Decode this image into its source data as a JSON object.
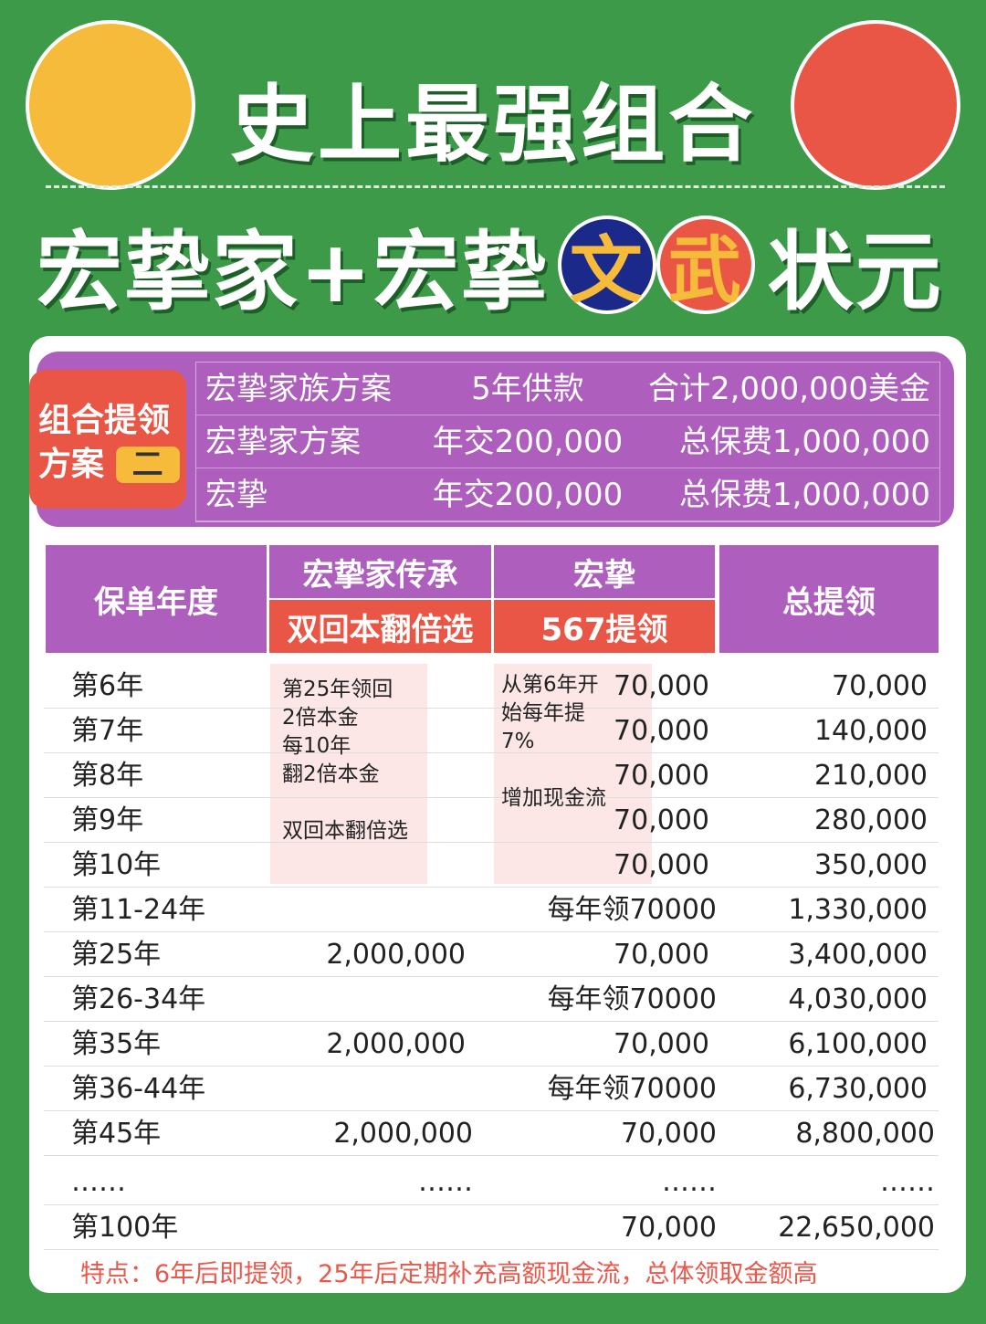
{
  "title": "史上最强组合",
  "subtitle": {
    "left": "宏挚家+宏挚",
    "wen": "文",
    "wu": "武",
    "right": "状元"
  },
  "plan": {
    "badge_line1": "组合提领",
    "badge_line2": "方案",
    "badge_num": "二",
    "rows": [
      {
        "name": "宏挚家族方案",
        "pay": "5年供款",
        "total": "合计2,000,000美金"
      },
      {
        "name": "宏挚家方案",
        "pay": "年交200,000",
        "total": "总保费1,000,000"
      },
      {
        "name": "宏挚",
        "pay": "年交200,000",
        "total": "总保费1,000,000"
      }
    ]
  },
  "table": {
    "headers": {
      "year": "保单年度",
      "col2_top": "宏挚家传承",
      "col2_bottom": "双回本翻倍选",
      "col3_top": "宏挚",
      "col3_bottom": "567提领",
      "total": "总提领"
    },
    "col2_note": [
      "第25年领回",
      "2倍本金",
      "每10年",
      "翻2倍本金",
      "",
      "双回本翻倍选"
    ],
    "col3_note": [
      "从第6年开",
      "始每年提",
      "7%",
      "",
      "增加现金流"
    ],
    "rows": [
      {
        "year": "第6年",
        "c2": "",
        "c3": "70,000",
        "total": "70,000"
      },
      {
        "year": "第7年",
        "c2": "",
        "c3": "70,000",
        "total": "140,000"
      },
      {
        "year": "第8年",
        "c2": "",
        "c3": "70,000",
        "total": "210,000"
      },
      {
        "year": "第9年",
        "c2": "",
        "c3": "70,000",
        "total": "280,000"
      },
      {
        "year": "第10年",
        "c2": "",
        "c3": "70,000",
        "total": "350,000"
      },
      {
        "year": "第11-24年",
        "c2": "",
        "c3": "每年领70000",
        "total": "1,330,000"
      },
      {
        "year": "第25年",
        "c2": "2,000,000",
        "c3": "70,000",
        "total": "3,400,000"
      },
      {
        "year": "第26-34年",
        "c2": "",
        "c3": "每年领70000",
        "total": "4,030,000"
      },
      {
        "year": "第35年",
        "c2": "2,000,000",
        "c3": "70,000",
        "total": "6,100,000"
      },
      {
        "year": "第36-44年",
        "c2": "",
        "c3": "每年领70000",
        "total": "6,730,000"
      },
      {
        "year": "第45年",
        "c2": "2,000,000",
        "c3": "70,000",
        "total": "8,800,000"
      },
      {
        "year": "……",
        "c2": "……",
        "c3": "……",
        "total": "……"
      },
      {
        "year": "第100年",
        "c2": "",
        "c3": "70,000",
        "total": "22,650,000"
      }
    ]
  },
  "footnote": "特点：6年后即提领，25年后定期补充高额现金流，总体领取金额高",
  "colors": {
    "green": "#3c9a48",
    "purple": "#ae5ebd",
    "red": "#e95645",
    "yellow": "#f6bb3a",
    "navy": "#1b2a8a"
  }
}
